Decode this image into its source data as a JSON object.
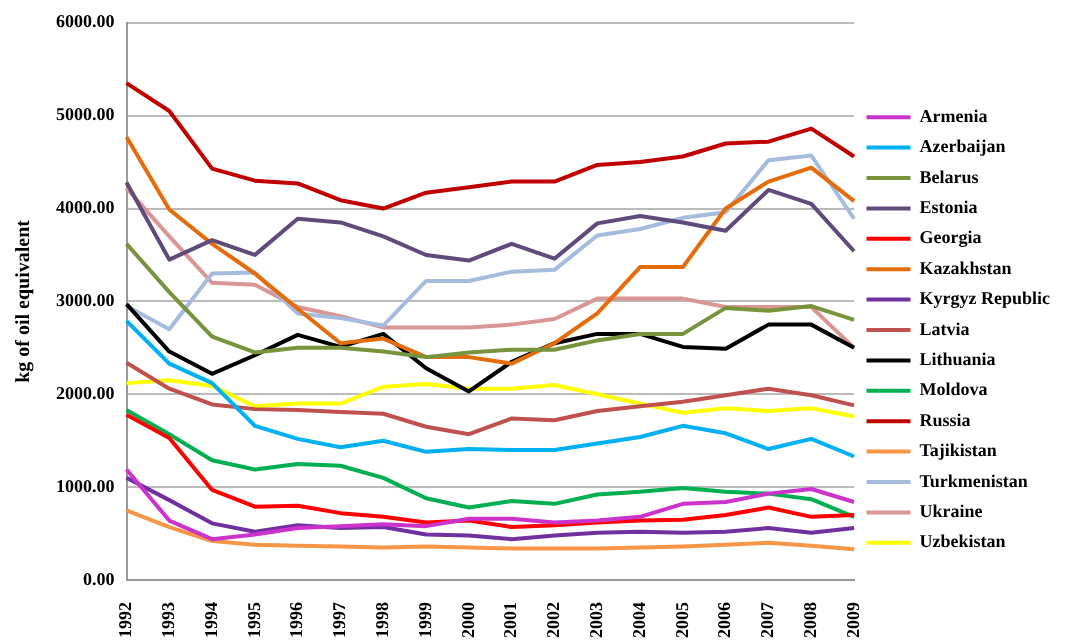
{
  "chart_data": {
    "type": "line",
    "ylabel": "kg of oil equivalent",
    "categories": [
      "1992",
      "1993",
      "1994",
      "1995",
      "1996",
      "1997",
      "1998",
      "1999",
      "2000",
      "2001",
      "2002",
      "2003",
      "2004",
      "2005",
      "2006",
      "2007",
      "2008",
      "2009"
    ],
    "ylim": [
      0,
      6000
    ],
    "yticks": [
      {
        "value": 0,
        "label": "0.00"
      },
      {
        "value": 1000,
        "label": "1000.00"
      },
      {
        "value": 2000,
        "label": "2000.00"
      },
      {
        "value": 3000,
        "label": "3000.00"
      },
      {
        "value": 4000,
        "label": "4000.00"
      },
      {
        "value": 5000,
        "label": "5000.00"
      },
      {
        "value": 6000,
        "label": "6000.00"
      }
    ],
    "grid": "y",
    "legend": "right",
    "marker": "none",
    "line_style": "solid",
    "series": [
      {
        "name": "Armenia",
        "color": "#cc33cc",
        "values": [
          1190,
          640,
          440,
          490,
          560,
          580,
          600,
          580,
          660,
          660,
          620,
          640,
          680,
          820,
          840,
          930,
          980,
          840
        ]
      },
      {
        "name": "Azerbaijan",
        "color": "#00b0f0",
        "values": [
          2790,
          2330,
          2120,
          1660,
          1520,
          1430,
          1500,
          1380,
          1410,
          1400,
          1400,
          1470,
          1540,
          1660,
          1580,
          1410,
          1520,
          1330
        ]
      },
      {
        "name": "Belarus",
        "color": "#77933c",
        "values": [
          3620,
          3100,
          2620,
          2450,
          2500,
          2500,
          2460,
          2400,
          2450,
          2480,
          2480,
          2580,
          2650,
          2650,
          2930,
          2900,
          2950,
          2800
        ]
      },
      {
        "name": "Estonia",
        "color": "#604a7b",
        "values": [
          4280,
          3450,
          3660,
          3500,
          3890,
          3850,
          3700,
          3500,
          3440,
          3620,
          3460,
          3840,
          3920,
          3850,
          3760,
          4200,
          4050,
          3540
        ]
      },
      {
        "name": "Georgia",
        "color": "#ff0000",
        "values": [
          1780,
          1530,
          970,
          790,
          800,
          720,
          680,
          620,
          640,
          570,
          590,
          620,
          640,
          650,
          700,
          780,
          680,
          700
        ]
      },
      {
        "name": "Kazakhstan",
        "color": "#e46c0a",
        "values": [
          4770,
          3990,
          3620,
          3300,
          2920,
          2550,
          2600,
          2400,
          2400,
          2330,
          2550,
          2870,
          3370,
          3370,
          4000,
          4290,
          4440,
          4080
        ]
      },
      {
        "name": "Kyrgyz Republic",
        "color": "#7030a0",
        "values": [
          1100,
          860,
          610,
          520,
          590,
          560,
          570,
          490,
          480,
          440,
          480,
          510,
          520,
          510,
          520,
          560,
          510,
          560
        ]
      },
      {
        "name": "Latvia",
        "color": "#c0504d",
        "values": [
          2340,
          2060,
          1890,
          1840,
          1830,
          1810,
          1790,
          1650,
          1570,
          1740,
          1720,
          1820,
          1870,
          1920,
          1990,
          2060,
          1990,
          1880
        ]
      },
      {
        "name": "Lithuania",
        "color": "#000000",
        "values": [
          2970,
          2460,
          2220,
          2420,
          2640,
          2510,
          2650,
          2280,
          2030,
          2350,
          2550,
          2650,
          2650,
          2510,
          2490,
          2750,
          2750,
          2500
        ]
      },
      {
        "name": "Moldova",
        "color": "#00b050",
        "values": [
          1830,
          1570,
          1290,
          1190,
          1250,
          1230,
          1100,
          880,
          780,
          850,
          820,
          920,
          950,
          990,
          950,
          930,
          870,
          680
        ]
      },
      {
        "name": "Russia",
        "color": "#c00000",
        "values": [
          5350,
          5050,
          4430,
          4300,
          4270,
          4090,
          4000,
          4170,
          4230,
          4290,
          4290,
          4470,
          4500,
          4560,
          4700,
          4720,
          4860,
          4560
        ]
      },
      {
        "name": "Tajikistan",
        "color": "#f79646",
        "values": [
          750,
          570,
          420,
          380,
          370,
          360,
          350,
          360,
          350,
          340,
          340,
          340,
          350,
          360,
          380,
          400,
          370,
          330
        ]
      },
      {
        "name": "Turkmenistan",
        "color": "#a6bcdf",
        "values": [
          2950,
          2700,
          3300,
          3310,
          2870,
          2820,
          2740,
          3220,
          3220,
          3320,
          3340,
          3710,
          3780,
          3900,
          3960,
          4520,
          4570,
          3890
        ]
      },
      {
        "name": "Ukraine",
        "color": "#d99694",
        "values": [
          4220,
          3700,
          3200,
          3180,
          2940,
          2840,
          2720,
          2720,
          2720,
          2750,
          2810,
          3030,
          3030,
          3030,
          2940,
          2940,
          2940,
          2500
        ]
      },
      {
        "name": "Uzbekistan",
        "color": "#ffff00",
        "values": [
          2120,
          2150,
          2090,
          1870,
          1900,
          1900,
          2080,
          2110,
          2060,
          2060,
          2100,
          2000,
          1900,
          1800,
          1850,
          1820,
          1850,
          1760
        ]
      }
    ]
  }
}
